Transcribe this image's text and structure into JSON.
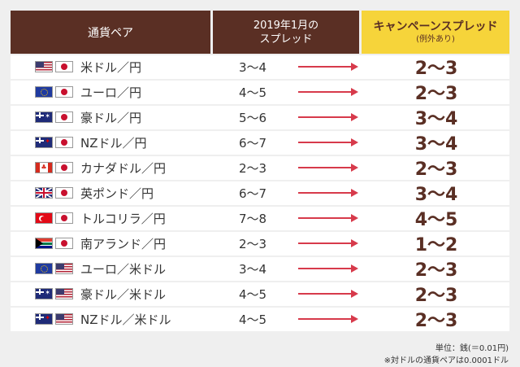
{
  "header": {
    "col_pair": "通貨ペア",
    "col_prev_line1": "2019年1月の",
    "col_prev_line2": "スプレッド",
    "col_campaign_line1": "キャンペーンスプレッド",
    "col_campaign_line2": "(例外あり)"
  },
  "rows": [
    {
      "pair": "米ドル／円",
      "prev": "3～4",
      "campaign": "2～3",
      "flag1": "us",
      "flag2": "jp"
    },
    {
      "pair": "ユーロ／円",
      "prev": "4～5",
      "campaign": "2～3",
      "flag1": "eu",
      "flag2": "jp"
    },
    {
      "pair": "豪ドル／円",
      "prev": "5～6",
      "campaign": "3～4",
      "flag1": "au",
      "flag2": "jp"
    },
    {
      "pair": "NZドル／円",
      "prev": "6～7",
      "campaign": "3～4",
      "flag1": "nz",
      "flag2": "jp"
    },
    {
      "pair": "カナダドル／円",
      "prev": "2～3",
      "campaign": "2～3",
      "flag1": "ca",
      "flag2": "jp"
    },
    {
      "pair": "英ポンド／円",
      "prev": "6～7",
      "campaign": "3～4",
      "flag1": "gb",
      "flag2": "jp"
    },
    {
      "pair": "トルコリラ／円",
      "prev": "7～8",
      "campaign": "4～5",
      "flag1": "tr",
      "flag2": "jp"
    },
    {
      "pair": "南アランド／円",
      "prev": "2～3",
      "campaign": "1～2",
      "flag1": "za",
      "flag2": "jp"
    },
    {
      "pair": "ユーロ／米ドル",
      "prev": "3～4",
      "campaign": "2～3",
      "flag1": "eu",
      "flag2": "us"
    },
    {
      "pair": "豪ドル／米ドル",
      "prev": "4～5",
      "campaign": "2～3",
      "flag1": "au",
      "flag2": "us"
    },
    {
      "pair": "NZドル／米ドル",
      "prev": "4～5",
      "campaign": "2～3",
      "flag1": "nz",
      "flag2": "us"
    }
  ],
  "notes": {
    "unit": "単位：銭(＝0.01円)",
    "usd_pair": "※対ドルの通貨ペアは0.0001ドル"
  },
  "colors": {
    "header_bg": "#5a2f24",
    "campaign_header_bg": "#f6d43a",
    "arrow": "#d73a4b",
    "campaign_text": "#5a2f24"
  },
  "icons": {
    "arrow": "right-arrow-icon"
  }
}
